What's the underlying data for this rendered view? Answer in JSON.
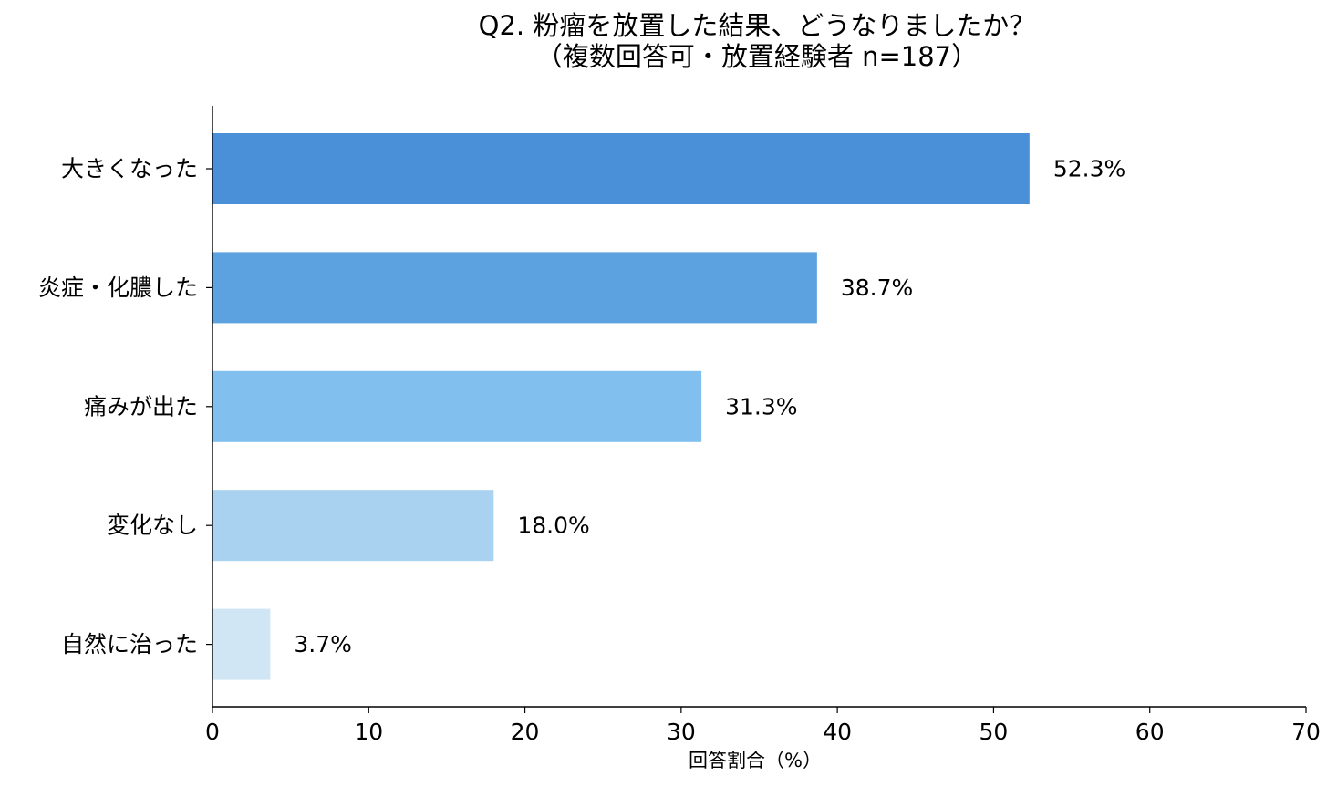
{
  "chart_data": {
    "type": "bar",
    "orientation": "horizontal",
    "title": "Q2. 粉瘤を放置した結果、どうなりましたか？",
    "subtitle": "（複数回答可・放置経験者 n=187）",
    "categories": [
      "大きくなった",
      "炎症・化膿した",
      "痛みが出た",
      "変化なし",
      "自然に治った"
    ],
    "values": [
      52.3,
      38.7,
      31.3,
      18.0,
      3.7
    ],
    "value_labels": [
      "52.3%",
      "38.7%",
      "31.3%",
      "18.0%",
      "3.7%"
    ],
    "bar_colors": [
      "#4a90d9",
      "#5ca2e0",
      "#80bfee",
      "#a9d1f0",
      "#d0e6f5"
    ],
    "xlabel": "回答割合（%）",
    "ylabel": "",
    "xlim": [
      0,
      70
    ],
    "xticks": [
      0,
      10,
      20,
      30,
      40,
      50,
      60,
      70
    ],
    "grid": false,
    "legend": "none"
  }
}
